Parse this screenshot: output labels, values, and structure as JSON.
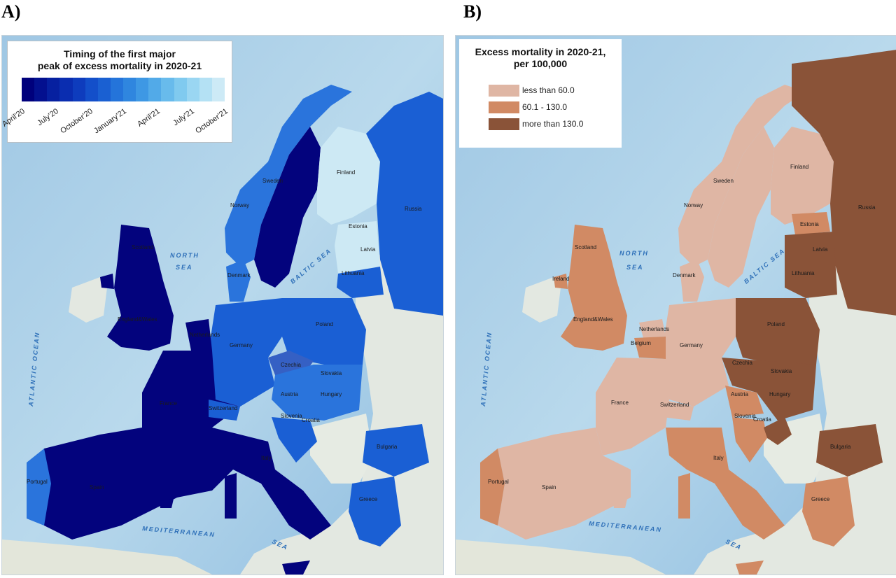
{
  "panels": {
    "a": {
      "label": "A)",
      "legend_title_1": "Timing of the first major",
      "legend_title_2": "peak of excess mortality in 2020-21",
      "ticks": [
        "April'20",
        "July'20",
        "October'20",
        "January'21",
        "April'21",
        "July'21",
        "October'21"
      ],
      "gradient": [
        "#00007c",
        "#03108f",
        "#0620a0",
        "#0a2db0",
        "#0e3cbd",
        "#134fca",
        "#1a60d2",
        "#2474da",
        "#2f86df",
        "#3e98e4",
        "#52aae8",
        "#68bbec",
        "#80caef",
        "#9ad6f2",
        "#b4e1f4",
        "#cdeaf6"
      ],
      "colors": {
        "early": "#03037d",
        "mid": "#1a5fd4",
        "late": "#2a74dc",
        "light": "#cde9f4"
      }
    },
    "b": {
      "label": "B)",
      "legend_title_1": "Excess mortality in 2020-21,",
      "legend_title_2": "per 100,000",
      "classes": [
        {
          "label": "less than 60.0",
          "color": "#dfb6a4"
        },
        {
          "label": "60.1 - 130.0",
          "color": "#d18a64"
        },
        {
          "label": "more than 130.0",
          "color": "#8a5338"
        }
      ]
    }
  },
  "seas": {
    "atlantic": "ATLANTIC OCEAN",
    "north": "NORTH",
    "north2": "SEA",
    "baltic": "BALTIC SEA",
    "med": "MEDITERRANEAN",
    "med2": "SEA"
  },
  "countries": {
    "norway": "Norway",
    "sweden": "Sweden",
    "finland": "Finland",
    "russia": "Russia",
    "estonia": "Estonia",
    "latvia": "Latvia",
    "lithuania": "Lithuania",
    "denmark": "Denmark",
    "scotland": "Scotland",
    "ireland": "Ireland",
    "england": "England&Wales",
    "netherlands": "Netherlands",
    "belgium": "Belgium",
    "germany": "Germany",
    "poland": "Poland",
    "czechia": "Czechia",
    "slovakia": "Slovakia",
    "austria": "Austria",
    "hungary": "Hungary",
    "switzerland": "Switzerland",
    "france": "France",
    "slovenia": "Slovenia",
    "croatia": "Croatia",
    "bulgaria": "Bulgaria",
    "italy": "Italy",
    "spain": "Spain",
    "portugal": "Portugal",
    "greece": "Greece"
  }
}
